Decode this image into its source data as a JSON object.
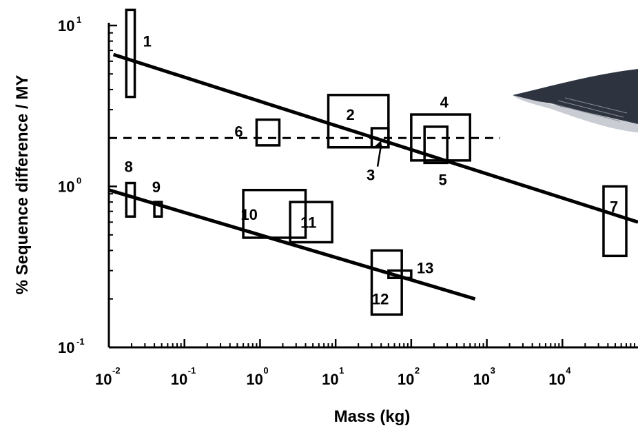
{
  "chart_data": {
    "type": "scatter",
    "title": "",
    "xlabel": "Mass (kg)",
    "ylabel": "% Sequence difference / MY",
    "xscale": "log",
    "yscale": "log",
    "xlim": [
      0.01,
      100000
    ],
    "ylim": [
      0.1,
      10
    ],
    "x_ticks": [
      {
        "base": "10",
        "exp": "-2"
      },
      {
        "base": "10",
        "exp": "-1"
      },
      {
        "base": "10",
        "exp": "0"
      },
      {
        "base": "10",
        "exp": "1"
      },
      {
        "base": "10",
        "exp": "2"
      },
      {
        "base": "10",
        "exp": "3"
      },
      {
        "base": "10",
        "exp": "4"
      }
    ],
    "y_ticks": [
      {
        "base": "10",
        "exp": "1"
      },
      {
        "base": "10",
        "exp": "0"
      },
      {
        "base": "10",
        "exp": "-1"
      }
    ],
    "boxes": [
      {
        "label": "1",
        "x0": 0.017,
        "x1": 0.022,
        "y0": 3.6,
        "y1": 12.5
      },
      {
        "label": "2",
        "x0": 8,
        "x1": 50,
        "y0": 1.75,
        "y1": 3.7
      },
      {
        "label": "3",
        "x0": 30,
        "x1": 50,
        "y0": 1.75,
        "y1": 2.3
      },
      {
        "label": "4",
        "x0": 100,
        "x1": 600,
        "y0": 1.45,
        "y1": 2.8
      },
      {
        "label": "5",
        "x0": 150,
        "x1": 300,
        "y0": 1.4,
        "y1": 2.35
      },
      {
        "label": "6",
        "x0": 0.9,
        "x1": 1.8,
        "y0": 1.8,
        "y1": 2.6
      },
      {
        "label": "7",
        "x0": 35000,
        "x1": 70000,
        "y0": 0.37,
        "y1": 1.0
      },
      {
        "label": "8",
        "x0": 0.017,
        "x1": 0.022,
        "y0": 0.65,
        "y1": 1.05
      },
      {
        "label": "9",
        "x0": 0.04,
        "x1": 0.05,
        "y0": 0.65,
        "y1": 0.8
      },
      {
        "label": "10",
        "x0": 0.6,
        "x1": 4,
        "y0": 0.48,
        "y1": 0.95
      },
      {
        "label": "11",
        "x0": 2.5,
        "x1": 9,
        "y0": 0.45,
        "y1": 0.8
      },
      {
        "label": "12",
        "x0": 30,
        "x1": 75,
        "y0": 0.16,
        "y1": 0.4
      },
      {
        "label": "13",
        "x0": 50,
        "x1": 100,
        "y0": 0.27,
        "y1": 0.3
      }
    ],
    "fit_lines": [
      {
        "x": [
          0.0115,
          100000
        ],
        "y": [
          6.6,
          0.6
        ]
      },
      {
        "x": [
          0.01,
          700
        ],
        "y": [
          0.95,
          0.2
        ]
      }
    ],
    "reference_line": {
      "y": 2.0,
      "xmin": 0.01,
      "xmax": 1500,
      "style": "dashed"
    },
    "annotations": [
      {
        "label": "3",
        "text_x": 33,
        "text_y": 1.18,
        "arrow_to_x": 40,
        "arrow_to_y": 1.93
      }
    ],
    "illustration": {
      "name": "whale-illustration"
    }
  }
}
